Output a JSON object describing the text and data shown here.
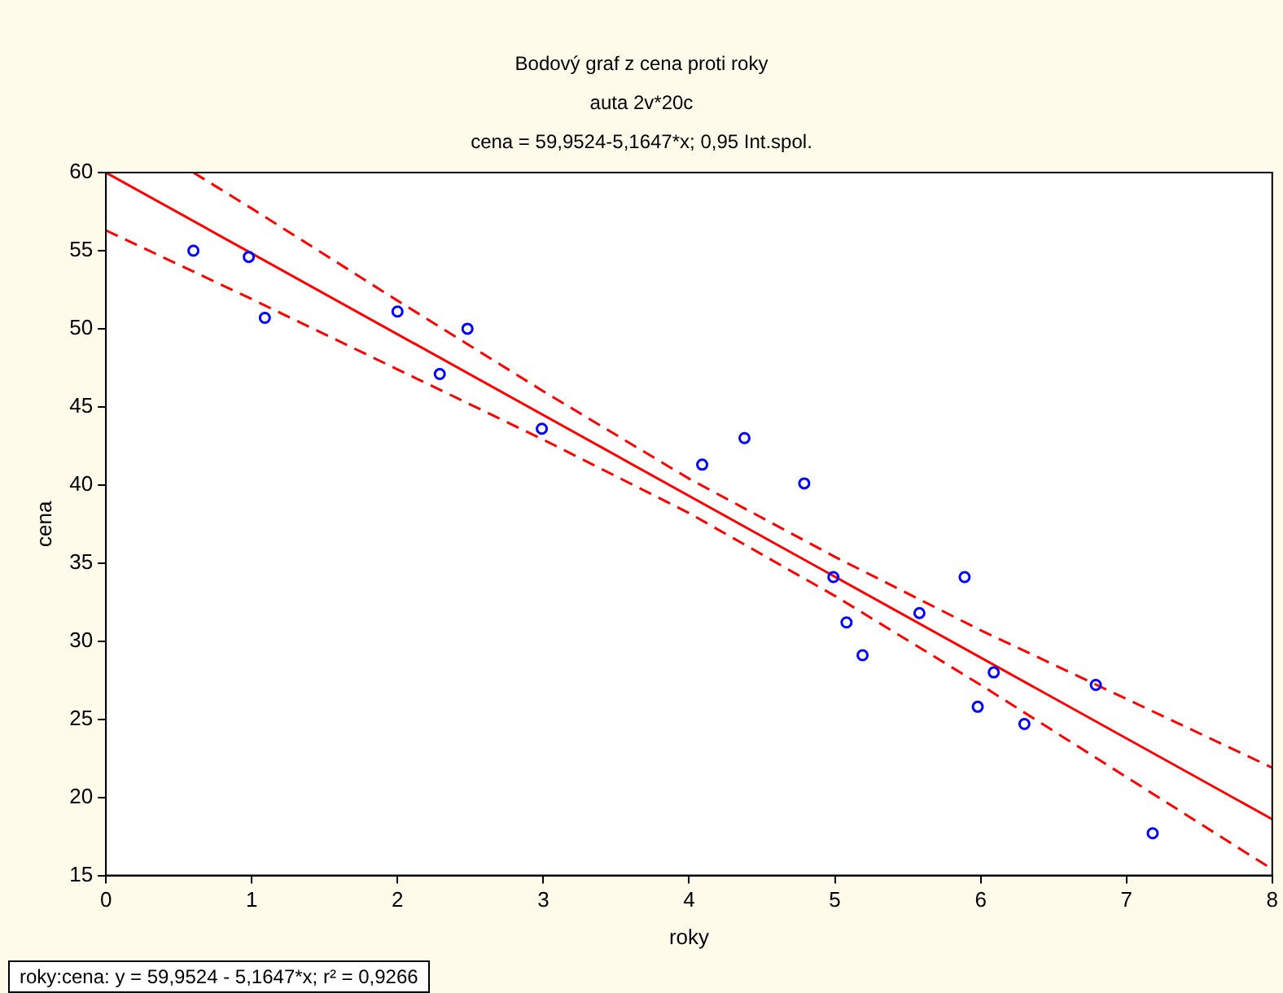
{
  "chart_data": {
    "type": "scatter",
    "title": "Bodový graf z cena proti roky",
    "subtitle": "auta 2v*20c",
    "xlabel": "roky",
    "ylabel": "cena",
    "annotations": [
      "cena = 59,9524-5,1647*x; 0,95 Int.spol.",
      "roky:cena:  y = 59,9524 - 5,1647*x; r² = 0,9266"
    ],
    "xlim": [
      0,
      8
    ],
    "xticks": [
      0,
      1,
      2,
      3,
      4,
      5,
      6,
      7,
      8
    ],
    "ylim": [
      15,
      60
    ],
    "yticks": [
      15,
      20,
      25,
      30,
      35,
      40,
      45,
      50,
      55,
      60
    ],
    "grid": false,
    "legend": false,
    "series": [
      {
        "color": "#0000ff",
        "marker": "circle",
        "x": [
          0.6,
          0.98,
          1.09,
          2.0,
          2.29,
          2.48,
          2.99,
          4.09,
          4.38,
          4.79,
          4.99,
          5.08,
          5.19,
          5.58,
          5.89,
          5.98,
          6.09,
          6.3,
          6.79,
          7.18
        ],
        "values": [
          55.0,
          54.6,
          50.7,
          51.1,
          47.1,
          50.0,
          43.6,
          41.3,
          43.0,
          40.1,
          34.1,
          31.2,
          29.1,
          31.8,
          34.1,
          25.8,
          28.0,
          24.7,
          27.2,
          17.7
        ]
      },
      {
        "type": "line",
        "color": "#ff0000",
        "marker": "none",
        "line_style": "solid",
        "x": [
          0,
          8
        ],
        "values": [
          60.0,
          18.6
        ]
      },
      {
        "type": "line",
        "color": "#ff0000",
        "marker": "none",
        "line_style": "dashed",
        "x": [
          0.6,
          1,
          2,
          3,
          4,
          5,
          6,
          7,
          8
        ],
        "values": [
          60,
          57.7,
          51.8,
          46.0,
          40.4,
          35.4,
          30.7,
          26.3,
          21.9
        ]
      },
      {
        "type": "line",
        "color": "#ff0000",
        "marker": "none",
        "line_style": "dashed",
        "x": [
          0,
          1,
          2,
          3,
          4,
          5,
          6,
          7,
          8
        ],
        "values": [
          56.3,
          51.9,
          47.4,
          42.9,
          38.2,
          32.9,
          27.2,
          21.3,
          15.4
        ]
      }
    ]
  }
}
